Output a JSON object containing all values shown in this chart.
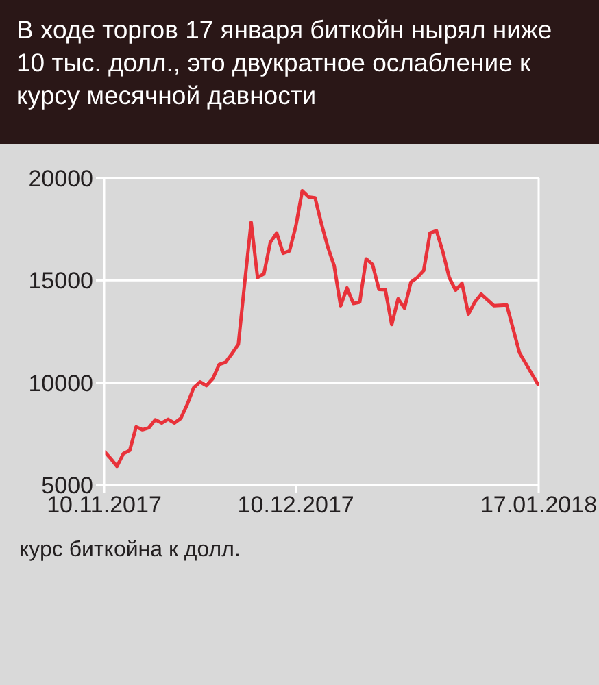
{
  "chart_data": {
    "type": "line",
    "title": "В ходе торгов 17 января биткойн нырял ниже 10 тыс. долл., это двукратное ослабление к курсу месячной давности",
    "xlabel": "курс биткойна к долл.",
    "x": [
      "2017-11-10",
      "2017-11-11",
      "2017-11-12",
      "2017-11-13",
      "2017-11-14",
      "2017-11-15",
      "2017-11-16",
      "2017-11-17",
      "2017-11-18",
      "2017-11-19",
      "2017-11-20",
      "2017-11-21",
      "2017-11-22",
      "2017-11-23",
      "2017-11-24",
      "2017-11-25",
      "2017-11-26",
      "2017-11-27",
      "2017-11-28",
      "2017-11-29",
      "2017-11-30",
      "2017-12-01",
      "2017-12-02",
      "2017-12-03",
      "2017-12-04",
      "2017-12-05",
      "2017-12-06",
      "2017-12-07",
      "2017-12-08",
      "2017-12-09",
      "2017-12-10",
      "2017-12-11",
      "2017-12-12",
      "2017-12-13",
      "2017-12-14",
      "2017-12-15",
      "2017-12-16",
      "2017-12-17",
      "2017-12-18",
      "2017-12-19",
      "2017-12-20",
      "2017-12-21",
      "2017-12-22",
      "2017-12-23",
      "2017-12-24",
      "2017-12-25",
      "2017-12-26",
      "2017-12-27",
      "2017-12-28",
      "2017-12-29",
      "2017-12-30",
      "2017-12-31",
      "2018-01-01",
      "2018-01-02",
      "2018-01-03",
      "2018-01-04",
      "2018-01-05",
      "2018-01-06",
      "2018-01-07",
      "2018-01-08",
      "2018-01-10",
      "2018-01-12",
      "2018-01-14",
      "2018-01-17"
    ],
    "series": [
      {
        "color": "#e8323a",
        "values": [
          6650,
          6300,
          5910,
          6530,
          6690,
          7840,
          7700,
          7800,
          8190,
          8030,
          8210,
          8030,
          8260,
          8940,
          9750,
          10040,
          9860,
          10200,
          10890,
          11000,
          11420,
          11880,
          14910,
          17840,
          15140,
          15320,
          16860,
          17320,
          16330,
          16440,
          17660,
          19380,
          19080,
          19040,
          17770,
          16630,
          15710,
          13760,
          14630,
          13870,
          13940,
          16050,
          15780,
          14560,
          14540,
          12840,
          14100,
          13640,
          14910,
          15140,
          15480,
          17320,
          17430,
          16400,
          15140,
          14520,
          14860,
          13350,
          13940,
          14330,
          13760,
          13800,
          11460,
          9860
        ]
      }
    ],
    "xlim": [
      "2017-11-10",
      "2018-01-17"
    ],
    "xticks": [
      {
        "value": "2017-11-10",
        "label": "10.11.2017"
      },
      {
        "value": "2017-12-10",
        "label": "10.12.2017"
      },
      {
        "value": "2018-01-17",
        "label": "17.01.2018"
      }
    ],
    "ylim": [
      5000,
      20000
    ],
    "yticks": [
      5000,
      10000,
      15000,
      20000
    ],
    "grid": "y",
    "marker": "none",
    "line_style": "solid"
  }
}
